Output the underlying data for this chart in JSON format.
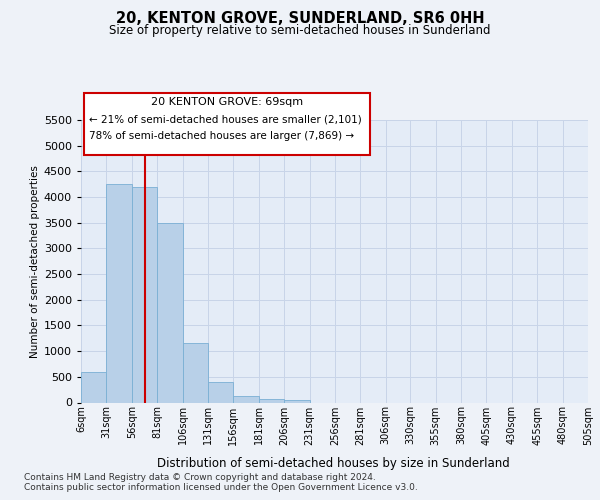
{
  "title": "20, KENTON GROVE, SUNDERLAND, SR6 0HH",
  "subtitle": "Size of property relative to semi-detached houses in Sunderland",
  "xlabel": "Distribution of semi-detached houses by size in Sunderland",
  "ylabel": "Number of semi-detached properties",
  "footnote1": "Contains HM Land Registry data © Crown copyright and database right 2024.",
  "footnote2": "Contains public sector information licensed under the Open Government Licence v3.0.",
  "property_size": 69,
  "property_label": "20 KENTON GROVE: 69sqm",
  "pct_smaller": 21,
  "count_smaller": 2101,
  "pct_larger": 78,
  "count_larger": 7869,
  "bin_labels": [
    "6sqm",
    "31sqm",
    "56sqm",
    "81sqm",
    "106sqm",
    "131sqm",
    "156sqm",
    "181sqm",
    "206sqm",
    "231sqm",
    "256sqm",
    "281sqm",
    "306sqm",
    "330sqm",
    "355sqm",
    "380sqm",
    "405sqm",
    "430sqm",
    "455sqm",
    "480sqm",
    "505sqm"
  ],
  "bin_edges": [
    6,
    31,
    56,
    81,
    106,
    131,
    156,
    181,
    206,
    231,
    256,
    281,
    306,
    330,
    355,
    380,
    405,
    430,
    455,
    480,
    505
  ],
  "bar_heights": [
    600,
    4250,
    4200,
    3500,
    1150,
    400,
    130,
    75,
    50,
    0,
    0,
    0,
    0,
    0,
    0,
    0,
    0,
    0,
    0,
    0
  ],
  "bar_color": "#b8d0e8",
  "bar_edge_color": "#7aafd4",
  "grid_color": "#c8d4e8",
  "bg_color": "#eef2f8",
  "plot_bg_color": "#e4ecf7",
  "redline_color": "#cc0000",
  "ann_box_edge": "#cc0000",
  "ylim_max": 5500,
  "yticks": [
    0,
    500,
    1000,
    1500,
    2000,
    2500,
    3000,
    3500,
    4000,
    4500,
    5000,
    5500
  ]
}
